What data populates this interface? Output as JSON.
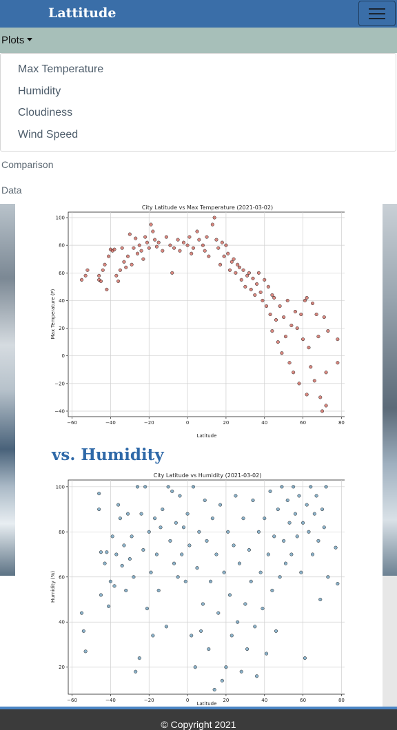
{
  "navbar": {
    "brand": "Lattitude",
    "menu_icon": "hamburger-icon"
  },
  "plots_menu": {
    "label": "Plots",
    "items": [
      "Max Temperature",
      "Humidity",
      "Cloudiness",
      "Wind Speed"
    ]
  },
  "nav_links": {
    "comparison": "Comparison",
    "data": "Data"
  },
  "section": {
    "humidity_heading": "vs. Humidity"
  },
  "footer": {
    "copyright": "© Copyright 2021"
  },
  "colors": {
    "navbar": "#3a6ea8",
    "plots_bar": "#a7bfb9",
    "heading": "#2f69a8",
    "temp_points": "#c0392b",
    "humidity_points": "#3d7fa6"
  },
  "chart_data": [
    {
      "type": "scatter",
      "title": "City Latitude vs Max Temperature (2021-03-02)",
      "xlabel": "Latitude",
      "ylabel": "Max Temperature (F)",
      "xlim": [
        -62,
        82
      ],
      "ylim": [
        -44,
        104
      ],
      "xticks": [
        -60,
        -40,
        -20,
        0,
        20,
        40,
        60,
        80
      ],
      "yticks": [
        -40,
        -20,
        0,
        20,
        40,
        60,
        80,
        100
      ],
      "grid": true,
      "point_color": "#c0392b",
      "points": [
        [
          -55,
          55
        ],
        [
          -53,
          58
        ],
        [
          -52,
          62
        ],
        [
          -46,
          55
        ],
        [
          -46,
          58
        ],
        [
          -45,
          54
        ],
        [
          -44,
          62
        ],
        [
          -43,
          66
        ],
        [
          -42,
          48
        ],
        [
          -41,
          72
        ],
        [
          -40,
          77
        ],
        [
          -39,
          76
        ],
        [
          -38,
          77
        ],
        [
          -37,
          58
        ],
        [
          -36,
          54
        ],
        [
          -35,
          62
        ],
        [
          -34,
          78
        ],
        [
          -33,
          68
        ],
        [
          -32,
          64
        ],
        [
          -31,
          72
        ],
        [
          -30,
          88
        ],
        [
          -29,
          66
        ],
        [
          -28,
          78
        ],
        [
          -27,
          85
        ],
        [
          -26,
          74
        ],
        [
          -25,
          80
        ],
        [
          -24,
          76
        ],
        [
          -23,
          70
        ],
        [
          -22,
          86
        ],
        [
          -21,
          82
        ],
        [
          -20,
          78
        ],
        [
          -19,
          95
        ],
        [
          -18,
          90
        ],
        [
          -17,
          84
        ],
        [
          -16,
          79
        ],
        [
          -15,
          82
        ],
        [
          -13,
          76
        ],
        [
          -11,
          86
        ],
        [
          -9,
          80
        ],
        [
          -8,
          60
        ],
        [
          -7,
          78
        ],
        [
          -5,
          84
        ],
        [
          -4,
          76
        ],
        [
          -2,
          82
        ],
        [
          0,
          80
        ],
        [
          1,
          86
        ],
        [
          2,
          74
        ],
        [
          3,
          78
        ],
        [
          5,
          90
        ],
        [
          6,
          84
        ],
        [
          8,
          80
        ],
        [
          9,
          76
        ],
        [
          10,
          86
        ],
        [
          11,
          72
        ],
        [
          13,
          95
        ],
        [
          14,
          100
        ],
        [
          15,
          84
        ],
        [
          16,
          78
        ],
        [
          17,
          66
        ],
        [
          18,
          82
        ],
        [
          19,
          72
        ],
        [
          20,
          80
        ],
        [
          21,
          74
        ],
        [
          22,
          62
        ],
        [
          23,
          68
        ],
        [
          24,
          70
        ],
        [
          25,
          60
        ],
        [
          26,
          66
        ],
        [
          27,
          64
        ],
        [
          28,
          55
        ],
        [
          29,
          62
        ],
        [
          30,
          50
        ],
        [
          31,
          58
        ],
        [
          32,
          60
        ],
        [
          33,
          48
        ],
        [
          34,
          56
        ],
        [
          35,
          44
        ],
        [
          36,
          52
        ],
        [
          37,
          60
        ],
        [
          38,
          46
        ],
        [
          39,
          40
        ],
        [
          40,
          55
        ],
        [
          41,
          36
        ],
        [
          42,
          50
        ],
        [
          43,
          30
        ],
        [
          44,
          44
        ],
        [
          44,
          18
        ],
        [
          45,
          42
        ],
        [
          46,
          26
        ],
        [
          47,
          10
        ],
        [
          48,
          36
        ],
        [
          49,
          2
        ],
        [
          50,
          28
        ],
        [
          51,
          14
        ],
        [
          52,
          40
        ],
        [
          53,
          -5
        ],
        [
          54,
          22
        ],
        [
          55,
          -12
        ],
        [
          56,
          32
        ],
        [
          57,
          20
        ],
        [
          58,
          -20
        ],
        [
          59,
          30
        ],
        [
          60,
          12
        ],
        [
          61,
          40
        ],
        [
          62,
          -28
        ],
        [
          62,
          42
        ],
        [
          63,
          6
        ],
        [
          64,
          -8
        ],
        [
          65,
          38
        ],
        [
          66,
          -18
        ],
        [
          67,
          30
        ],
        [
          68,
          14
        ],
        [
          69,
          -30
        ],
        [
          70,
          -40
        ],
        [
          71,
          28
        ],
        [
          72,
          -12
        ],
        [
          72,
          -36
        ],
        [
          73,
          18
        ],
        [
          78,
          12
        ],
        [
          78,
          -5
        ]
      ]
    },
    {
      "type": "scatter",
      "title": "City Latitude vs Humidity (2021-03-02)",
      "xlabel": "Latitude",
      "ylabel": "Humidity (%)",
      "xlim": [
        -62,
        82
      ],
      "ylim": [
        8,
        103
      ],
      "xticks": [
        -60,
        -40,
        -20,
        0,
        20,
        40,
        60,
        80
      ],
      "yticks": [
        20,
        40,
        60,
        80,
        100
      ],
      "grid": true,
      "point_color": "#3d7fa6",
      "points": [
        [
          -55,
          44
        ],
        [
          -54,
          36
        ],
        [
          -53,
          27
        ],
        [
          -46,
          97
        ],
        [
          -46,
          90
        ],
        [
          -45,
          71
        ],
        [
          -45,
          52
        ],
        [
          -43,
          66
        ],
        [
          -42,
          71
        ],
        [
          -41,
          47
        ],
        [
          -40,
          58
        ],
        [
          -39,
          78
        ],
        [
          -38,
          56
        ],
        [
          -37,
          70
        ],
        [
          -36,
          92
        ],
        [
          -35,
          86
        ],
        [
          -34,
          65
        ],
        [
          -33,
          74
        ],
        [
          -32,
          54
        ],
        [
          -31,
          88
        ],
        [
          -30,
          68
        ],
        [
          -29,
          78
        ],
        [
          -28,
          60
        ],
        [
          -27,
          18
        ],
        [
          -26,
          100
        ],
        [
          -25,
          24
        ],
        [
          -24,
          88
        ],
        [
          -23,
          72
        ],
        [
          -22,
          100
        ],
        [
          -21,
          46
        ],
        [
          -20,
          80
        ],
        [
          -19,
          62
        ],
        [
          -18,
          34
        ],
        [
          -17,
          86
        ],
        [
          -16,
          70
        ],
        [
          -15,
          54
        ],
        [
          -14,
          82
        ],
        [
          -13,
          90
        ],
        [
          -11,
          38
        ],
        [
          -10,
          100
        ],
        [
          -9,
          76
        ],
        [
          -8,
          98
        ],
        [
          -7,
          66
        ],
        [
          -6,
          84
        ],
        [
          -5,
          60
        ],
        [
          -4,
          96
        ],
        [
          -3,
          70
        ],
        [
          -2,
          82
        ],
        [
          -1,
          58
        ],
        [
          0,
          88
        ],
        [
          1,
          74
        ],
        [
          2,
          34
        ],
        [
          3,
          100
        ],
        [
          4,
          20
        ],
        [
          5,
          64
        ],
        [
          6,
          80
        ],
        [
          7,
          36
        ],
        [
          8,
          48
        ],
        [
          9,
          94
        ],
        [
          10,
          76
        ],
        [
          11,
          28
        ],
        [
          12,
          58
        ],
        [
          13,
          86
        ],
        [
          14,
          10
        ],
        [
          15,
          70
        ],
        [
          16,
          44
        ],
        [
          17,
          92
        ],
        [
          18,
          14
        ],
        [
          19,
          62
        ],
        [
          20,
          20
        ],
        [
          21,
          80
        ],
        [
          22,
          52
        ],
        [
          23,
          34
        ],
        [
          24,
          74
        ],
        [
          25,
          96
        ],
        [
          26,
          40
        ],
        [
          27,
          66
        ],
        [
          28,
          18
        ],
        [
          29,
          86
        ],
        [
          30,
          48
        ],
        [
          31,
          28
        ],
        [
          32,
          72
        ],
        [
          33,
          58
        ],
        [
          34,
          94
        ],
        [
          35,
          38
        ],
        [
          36,
          16
        ],
        [
          37,
          80
        ],
        [
          38,
          62
        ],
        [
          39,
          46
        ],
        [
          40,
          86
        ],
        [
          41,
          26
        ],
        [
          42,
          70
        ],
        [
          43,
          98
        ],
        [
          44,
          54
        ],
        [
          45,
          78
        ],
        [
          46,
          36
        ],
        [
          47,
          90
        ],
        [
          48,
          60
        ],
        [
          49,
          100
        ],
        [
          50,
          76
        ],
        [
          51,
          66
        ],
        [
          52,
          94
        ],
        [
          53,
          84
        ],
        [
          54,
          70
        ],
        [
          55,
          100
        ],
        [
          56,
          88
        ],
        [
          57,
          78
        ],
        [
          58,
          96
        ],
        [
          59,
          62
        ],
        [
          60,
          84
        ],
        [
          61,
          24
        ],
        [
          62,
          92
        ],
        [
          63,
          80
        ],
        [
          64,
          100
        ],
        [
          65,
          70
        ],
        [
          66,
          88
        ],
        [
          67,
          96
        ],
        [
          68,
          76
        ],
        [
          69,
          50
        ],
        [
          70,
          90
        ],
        [
          71,
          82
        ],
        [
          72,
          100
        ],
        [
          73,
          60
        ],
        [
          77,
          73
        ],
        [
          78,
          57
        ]
      ]
    }
  ]
}
